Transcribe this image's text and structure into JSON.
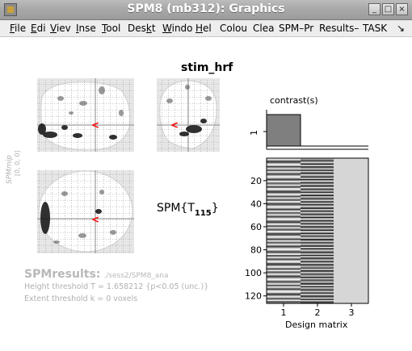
{
  "window": {
    "title": "SPM8 (mb312): Graphics",
    "buttons": {
      "minimize": "_",
      "maximize": "□",
      "close": "×"
    }
  },
  "menubar": {
    "items": [
      {
        "label": "File",
        "mnemonic": "F"
      },
      {
        "label": "Edi",
        "mnemonic": "E"
      },
      {
        "label": "Viev",
        "mnemonic": "V"
      },
      {
        "label": "Inse",
        "mnemonic": "I"
      },
      {
        "label": "Tool",
        "mnemonic": "T"
      },
      {
        "label": "Deskt",
        "mnemonic": "k"
      },
      {
        "label": "Windo",
        "mnemonic": "W"
      },
      {
        "label": "Hel",
        "mnemonic": "H"
      },
      {
        "label": "Colou",
        "mnemonic": ""
      },
      {
        "label": "Clea",
        "mnemonic": ""
      },
      {
        "label": "SPM–Pr",
        "mnemonic": ""
      },
      {
        "label": "Results–",
        "mnemonic": ""
      },
      {
        "label": "TASK",
        "mnemonic": ""
      }
    ],
    "overflow_icon": "arrow-icon"
  },
  "figure": {
    "contrast_name": "stim_hrf",
    "spm_stat": {
      "prefix": "SPM{T",
      "subscript": "115",
      "suffix": "}"
    },
    "mip_side_label": "SPMmip",
    "mip_coords": "[0, 0, 0]",
    "results": {
      "title": "SPMresults:",
      "path": "./sess2/SPM8_ana",
      "height_threshold": "Height threshold T = 1.658212  {p<0.05 (unc.)}",
      "extent_threshold": "Extent threshold k = 0 voxels"
    },
    "contrast_panel": {
      "title": "contrast(s)",
      "row_label": "1",
      "weights": [
        1,
        0,
        0
      ]
    },
    "design_matrix": {
      "xlabel": "Design matrix",
      "y_ticks": [
        "20",
        "40",
        "60",
        "80",
        "100",
        "120"
      ],
      "x_ticks": [
        "1",
        "2",
        "3"
      ],
      "n_scans": 126,
      "n_columns": 3
    },
    "colors": {
      "cursor": "#ff0000",
      "contrast_bar": "#7f7f7f",
      "dim_text": "#b0b0b0"
    }
  }
}
